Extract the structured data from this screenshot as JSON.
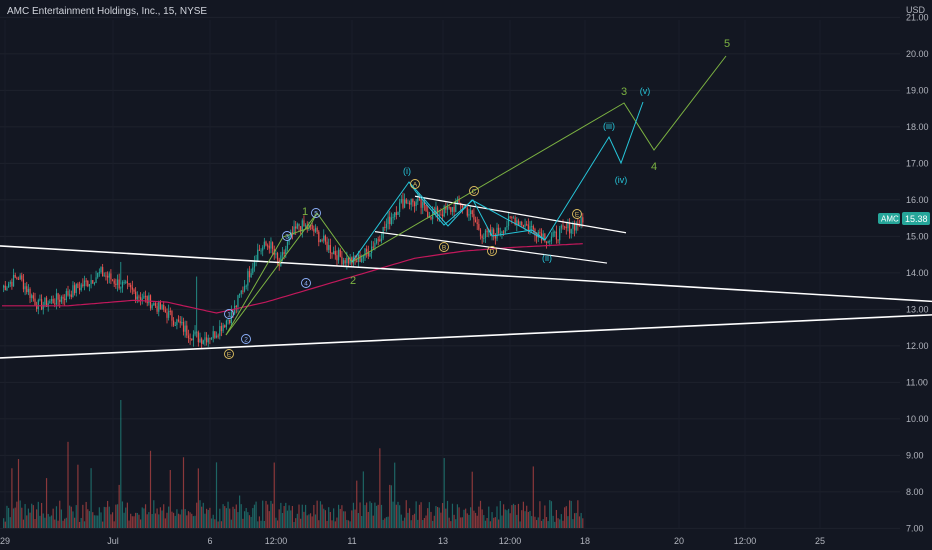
{
  "header": {
    "title": "AMC Entertainment Holdings, Inc., 15, NYSE"
  },
  "price_axis": {
    "currency": "USD",
    "ticks": [
      "21.00",
      "20.00",
      "19.00",
      "18.00",
      "17.00",
      "16.00",
      "15.00",
      "14.00",
      "13.00",
      "12.00",
      "11.00",
      "10.00",
      "9.00",
      "8.00",
      "7.00"
    ],
    "last_price_badge": {
      "symbol": "AMC",
      "value": "15.38"
    }
  },
  "time_axis": {
    "ticks": [
      {
        "label": "29",
        "slot": 0
      },
      {
        "label": "Jul",
        "slot": 1
      },
      {
        "label": "6",
        "slot": 2
      },
      {
        "label": "12:00",
        "slot": 3
      },
      {
        "label": "11",
        "slot": 4
      },
      {
        "label": "13",
        "slot": 5
      },
      {
        "label": "12:00",
        "slot": 6
      },
      {
        "label": "18",
        "slot": 7
      },
      {
        "label": "20",
        "slot": 8
      },
      {
        "label": "12:00",
        "slot": 9
      },
      {
        "label": "25",
        "slot": 10
      }
    ]
  },
  "wave_labels": {
    "primary": [
      "1",
      "2",
      "3",
      "4",
      "5"
    ],
    "minor": [
      "(i)",
      "(ii)",
      "(iii)",
      "(iv)",
      "(v)"
    ],
    "circled_blue": [
      "1",
      "2",
      "3",
      "4",
      "5"
    ],
    "circled_yellow": [
      "A",
      "B",
      "C",
      "D",
      "E",
      "E"
    ]
  },
  "colors": {
    "background": "#131722",
    "up": "#26a69a",
    "down": "#ef5350",
    "ma": "#c2185b",
    "trendline": "#ffffff",
    "green_wave": "#7cb342",
    "cyan_wave": "#26c6da",
    "yellow_label": "#e0c060",
    "blue_label": "#8fb4ff",
    "badge": "#26a69a"
  },
  "chart_data": {
    "type": "candlestick",
    "symbol": "AMC",
    "interval": "15",
    "exchange": "NYSE",
    "ylim": [
      6.7,
      21.3
    ],
    "last_price": 15.38,
    "anchors": [
      [
        0,
        13.6
      ],
      [
        10,
        13.9
      ],
      [
        22,
        13.1
      ],
      [
        35,
        13.3
      ],
      [
        50,
        13.7
      ],
      [
        60,
        14.0
      ],
      [
        75,
        13.6
      ],
      [
        90,
        13.2
      ],
      [
        100,
        12.9
      ],
      [
        112,
        12.4
      ],
      [
        120,
        12.2
      ],
      [
        128,
        12.3
      ],
      [
        140,
        12.9
      ],
      [
        148,
        13.8
      ],
      [
        155,
        14.6
      ],
      [
        162,
        14.8
      ],
      [
        168,
        14.2
      ],
      [
        174,
        14.9
      ],
      [
        180,
        15.3
      ],
      [
        188,
        15.2
      ],
      [
        198,
        14.7
      ],
      [
        206,
        14.4
      ],
      [
        214,
        14.3
      ],
      [
        222,
        14.6
      ],
      [
        230,
        15.1
      ],
      [
        238,
        15.7
      ],
      [
        244,
        16.0
      ],
      [
        252,
        15.9
      ],
      [
        260,
        15.6
      ],
      [
        270,
        15.7
      ],
      [
        278,
        15.9
      ],
      [
        284,
        15.6
      ],
      [
        292,
        15.0
      ],
      [
        300,
        15.1
      ],
      [
        310,
        15.5
      ],
      [
        318,
        15.3
      ],
      [
        326,
        15.1
      ],
      [
        332,
        14.9
      ],
      [
        338,
        15.1
      ],
      [
        346,
        15.3
      ],
      [
        352,
        15.38
      ]
    ],
    "moving_average": [
      [
        0,
        13.1
      ],
      [
        40,
        13.1
      ],
      [
        80,
        13.25
      ],
      [
        100,
        13.2
      ],
      [
        130,
        12.9
      ],
      [
        160,
        13.2
      ],
      [
        190,
        13.6
      ],
      [
        220,
        14.0
      ],
      [
        250,
        14.4
      ],
      [
        280,
        14.6
      ],
      [
        310,
        14.7
      ],
      [
        352,
        14.8
      ]
    ],
    "trendlines": [
      {
        "name": "upper-channel",
        "points": [
          [
            0,
            14.74
          ],
          [
            932,
            13.22
          ]
        ],
        "x_unit": "px"
      },
      {
        "name": "lower-channel",
        "points": [
          [
            0,
            11.67
          ],
          [
            932,
            12.85
          ]
        ],
        "x_unit": "px"
      },
      {
        "name": "wedge-top",
        "points": [
          [
            415,
            16.1
          ],
          [
            626,
            15.1
          ]
        ],
        "x_unit": "px"
      },
      {
        "name": "wedge-bottom",
        "points": [
          [
            375,
            15.13
          ],
          [
            607,
            14.27
          ]
        ],
        "x_unit": "px"
      }
    ]
  }
}
